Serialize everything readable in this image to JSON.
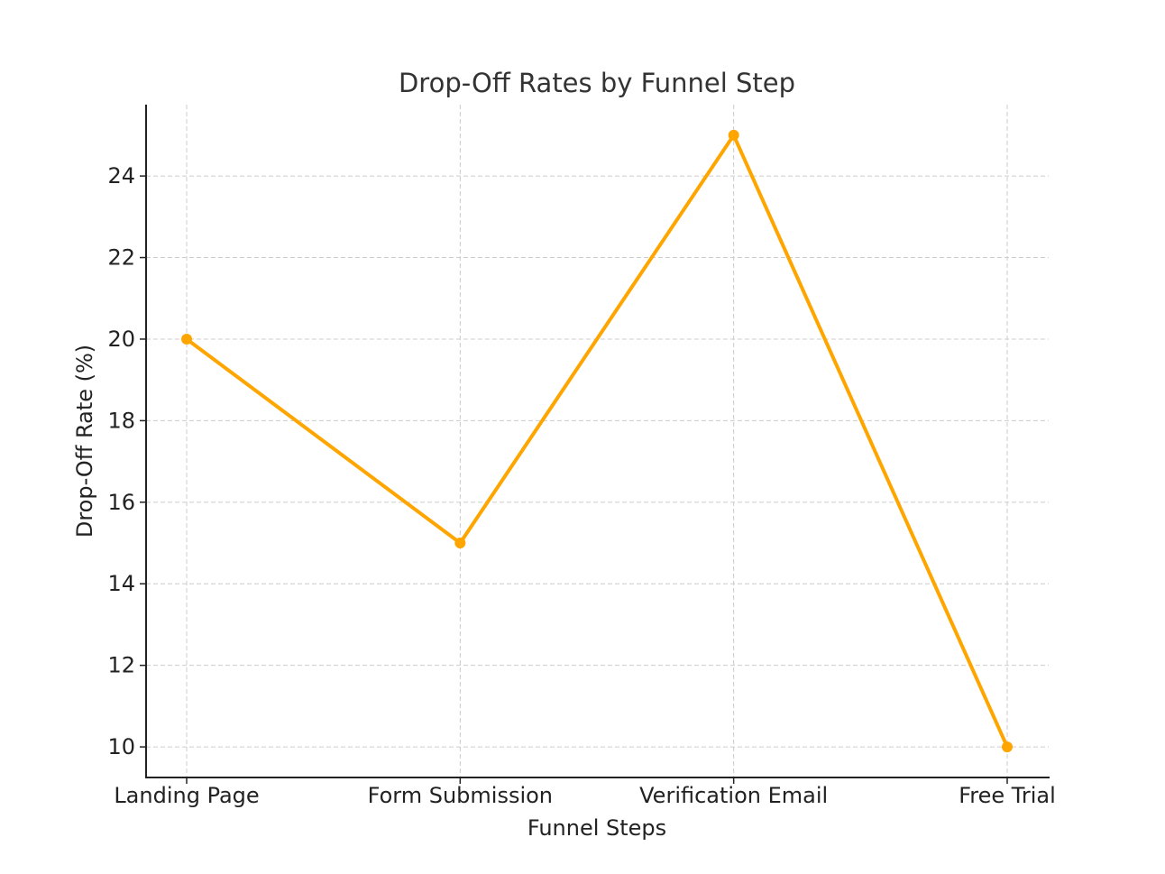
{
  "chart_data": {
    "type": "line",
    "title": "Drop-Off Rates by Funnel Step",
    "xlabel": "Funnel Steps",
    "ylabel": "Drop-Off Rate (%)",
    "categories": [
      "Landing Page",
      "Form Submission",
      "Verification Email",
      "Free Trial"
    ],
    "series": [
      {
        "values": [
          20,
          15,
          25,
          10
        ],
        "color": "#FFA500",
        "marker": "circle"
      }
    ],
    "ylim": [
      9.25,
      25.75
    ],
    "yticks": [
      10,
      12,
      14,
      16,
      18,
      20,
      22,
      24
    ],
    "grid": true,
    "grid_style": "dashed"
  }
}
